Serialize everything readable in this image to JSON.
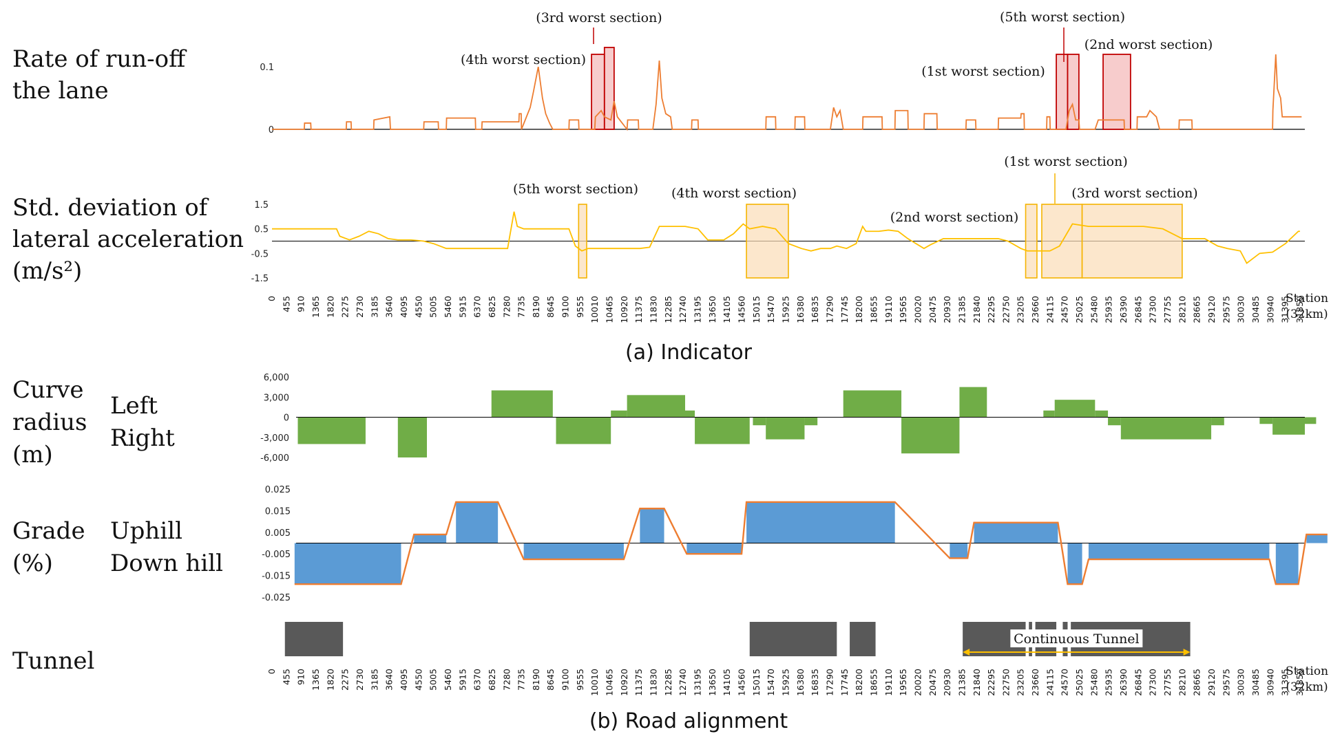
{
  "colors": {
    "runoff": "#ED7D31",
    "runoff_box": "#C00000",
    "lateral": "#FFC000",
    "lateral_box": "#F5B400",
    "curve": "#70AD47",
    "grade_bar": "#5B9BD5",
    "grade_line": "#ED7D31",
    "tunnel": "#595959",
    "tunnel_arrow": "#FFC000"
  },
  "x_ticks": [
    "0",
    "455",
    "910",
    "1365",
    "1820",
    "2275",
    "2730",
    "3185",
    "3640",
    "4095",
    "4550",
    "5005",
    "5460",
    "5915",
    "6370",
    "6825",
    "7280",
    "7735",
    "8190",
    "8645",
    "9100",
    "9555",
    "10010",
    "10465",
    "10920",
    "11375",
    "11830",
    "12285",
    "12740",
    "13195",
    "13650",
    "14105",
    "14560",
    "15015",
    "15470",
    "15925",
    "16380",
    "16835",
    "17290",
    "17745",
    "18200",
    "18655",
    "19110",
    "19565",
    "20020",
    "20475",
    "20930",
    "21385",
    "21840",
    "22295",
    "22750",
    "23205",
    "23660",
    "24115",
    "24570",
    "25025",
    "25480",
    "25935",
    "26390",
    "26845",
    "27300",
    "27755",
    "28210",
    "28665",
    "29120",
    "29575",
    "30030",
    "30485",
    "30940",
    "31395",
    "31850"
  ],
  "station_label_line1": "Station",
  "station_label_line2": "(32km)",
  "caption_a": "(a) Indicator",
  "caption_b": "(b) Road alignment",
  "chart_data": [
    {
      "id": "runoff",
      "type": "line",
      "label_lines": [
        "Rate of run-off",
        "the lane"
      ],
      "yticks": [
        "0.1",
        "0"
      ],
      "ylim": [
        0,
        0.12
      ],
      "x_range": [
        0,
        32000
      ],
      "series": [
        {
          "x": [
            0,
            1000,
            1010,
            1200,
            1210,
            2300,
            2310,
            2450,
            2460,
            3150,
            3160,
            3650,
            3670,
            4700,
            4710,
            5150,
            5160,
            5400,
            5410,
            6300,
            6310,
            6500,
            6510,
            7650,
            7660,
            7720,
            7730,
            8000,
            8100,
            8250,
            8380,
            8480,
            8600,
            8700,
            9200,
            9210,
            9500,
            9510,
            10000,
            10020,
            10200,
            10300,
            10500,
            10600,
            10700,
            11000,
            11020,
            11350,
            11360,
            11800,
            11900,
            12000,
            12080,
            12200,
            12350,
            12400,
            13000,
            13010,
            13200,
            13210,
            15300,
            15310,
            15600,
            15610,
            16200,
            16210,
            16500,
            16510,
            17300,
            17400,
            17500,
            17600,
            17700,
            18300,
            18310,
            18900,
            18910,
            19300,
            19310,
            19700,
            19710,
            20200,
            20210,
            20600,
            20610,
            21500,
            21510,
            21800,
            21810,
            22500,
            22510,
            23200,
            23210,
            23300,
            23310,
            24000,
            24010,
            24100,
            24110,
            24600,
            24700,
            24800,
            24900,
            25000,
            25020,
            25500,
            25600,
            26400,
            26410,
            26800,
            26810,
            27100,
            27200,
            27400,
            27500,
            28100,
            28110,
            28500,
            28510,
            31000,
            31010,
            31100,
            31150,
            31250,
            31300,
            31400,
            31410,
            31900
          ],
          "y": [
            0,
            0,
            0.01,
            0.01,
            0,
            0,
            0.012,
            0.012,
            0,
            0,
            0.015,
            0.02,
            0,
            0,
            0.012,
            0.012,
            0,
            0,
            0.018,
            0.018,
            0,
            0,
            0.012,
            0.012,
            0.025,
            0.025,
            0,
            0.035,
            0.06,
            0.1,
            0.05,
            0.025,
            0.01,
            0,
            0,
            0.015,
            0.015,
            0,
            0,
            0.02,
            0.03,
            0.02,
            0.015,
            0.045,
            0.02,
            0,
            0.015,
            0.015,
            0,
            0,
            0.04,
            0.11,
            0.05,
            0.025,
            0.02,
            0,
            0,
            0.015,
            0.015,
            0,
            0,
            0.02,
            0.02,
            0,
            0,
            0.02,
            0.02,
            0,
            0,
            0.035,
            0.02,
            0.03,
            0,
            0,
            0.02,
            0.02,
            0,
            0,
            0.03,
            0.03,
            0,
            0,
            0.025,
            0.025,
            0,
            0,
            0.015,
            0.015,
            0,
            0,
            0.018,
            0.018,
            0.025,
            0.025,
            0,
            0,
            0.02,
            0.02,
            0,
            0,
            0.03,
            0.04,
            0.015,
            0.015,
            0,
            0,
            0.015,
            0.015,
            0,
            0,
            0.02,
            0.02,
            0.03,
            0.02,
            0,
            0,
            0.015,
            0.015,
            0,
            0,
            0.03,
            0.12,
            0.065,
            0.05,
            0.02,
            0.02,
            0.02,
            0.02
          ]
        }
      ],
      "highlights": [
        {
          "label": "(4th worst section)",
          "x0": 9900,
          "x1": 10300
        },
        {
          "label": "(3rd worst section)",
          "x0": 10300,
          "x1": 10600
        },
        {
          "label": "(1st worst section)",
          "x0": 24300,
          "x1": 24650
        },
        {
          "label": "(5th worst section)",
          "x0": 24650,
          "x1": 25000
        },
        {
          "label": "(2nd worst section)",
          "x0": 25750,
          "x1": 26600
        }
      ]
    },
    {
      "id": "lateral",
      "type": "line",
      "label_lines": [
        "Std. deviation of",
        "lateral acceleration",
        "(m/s²)"
      ],
      "yticks": [
        "1.5",
        "0.5",
        "-0.5",
        "-1.5"
      ],
      "ylim": [
        -1.5,
        1.5
      ],
      "x_range": [
        0,
        32000
      ],
      "series": [
        {
          "x": [
            0,
            2000,
            2100,
            2400,
            2700,
            3000,
            3300,
            3600,
            3900,
            4300,
            4700,
            5000,
            5400,
            5800,
            6200,
            6900,
            7300,
            7500,
            7600,
            7800,
            8200,
            8600,
            9200,
            9400,
            9600,
            9800,
            10000,
            10500,
            11000,
            11400,
            11700,
            12000,
            12300,
            12800,
            13200,
            13500,
            14000,
            14300,
            14600,
            14800,
            15200,
            15600,
            16000,
            16400,
            16700,
            17000,
            17300,
            17500,
            17800,
            18100,
            18300,
            18400,
            18800,
            19100,
            19400,
            19700,
            20200,
            20400,
            20800,
            21300,
            21800,
            22500,
            22800,
            23200,
            23400,
            23800,
            24100,
            24400,
            24800,
            25300,
            25800,
            26400,
            27000,
            27600,
            28200,
            28500,
            28900,
            29300,
            29600,
            30000,
            30200,
            30600,
            31000,
            31400,
            31800,
            31850
          ],
          "y": [
            0.5,
            0.5,
            0.2,
            0.05,
            0.2,
            0.4,
            0.3,
            0.1,
            0.05,
            0.05,
            0.0,
            -0.1,
            -0.3,
            -0.3,
            -0.3,
            -0.3,
            -0.3,
            1.2,
            0.6,
            0.5,
            0.5,
            0.5,
            0.5,
            -0.2,
            -0.4,
            -0.3,
            -0.3,
            -0.3,
            -0.3,
            -0.3,
            -0.25,
            0.6,
            0.6,
            0.6,
            0.5,
            0.05,
            0.05,
            0.3,
            0.7,
            0.5,
            0.6,
            0.5,
            -0.1,
            -0.3,
            -0.4,
            -0.3,
            -0.3,
            -0.2,
            -0.3,
            -0.1,
            0.6,
            0.4,
            0.4,
            0.45,
            0.4,
            0.1,
            -0.3,
            -0.15,
            0.1,
            0.1,
            0.1,
            0.1,
            0.0,
            -0.3,
            -0.4,
            -0.4,
            -0.4,
            -0.2,
            0.7,
            0.6,
            0.6,
            0.6,
            0.6,
            0.5,
            0.1,
            0.1,
            0.1,
            -0.2,
            -0.3,
            -0.4,
            -0.9,
            -0.5,
            -0.45,
            -0.1,
            0.4,
            0.4
          ]
        }
      ],
      "highlights": [
        {
          "label": "(5th worst section)",
          "x0": 9500,
          "x1": 9750
        },
        {
          "label": "(4th worst section)",
          "x0": 14700,
          "x1": 16000
        },
        {
          "label": "(2nd worst section)",
          "x0": 23350,
          "x1": 23700
        },
        {
          "label": "(1st worst section)",
          "x0": 23850,
          "x1": 25100
        },
        {
          "label": "(3rd worst section)",
          "x0": 25100,
          "x1": 28200
        }
      ]
    },
    {
      "id": "curve",
      "type": "bar",
      "label_lines": [
        "Curve",
        "radius",
        "(m)"
      ],
      "side_labels": [
        "Left",
        "Right"
      ],
      "yticks": [
        "6,000",
        "3,000",
        "0",
        "-3,000",
        "-6,000"
      ],
      "ylim": [
        -6000,
        6000
      ],
      "x_range": [
        0,
        32000
      ],
      "segments": [
        {
          "x0": 800,
          "x1": 2900,
          "v": -4000
        },
        {
          "x0": 3900,
          "x1": 4800,
          "v": -6000
        },
        {
          "x0": 6800,
          "x1": 8700,
          "v": 4000
        },
        {
          "x0": 8800,
          "x1": 10500,
          "v": -4000
        },
        {
          "x0": 10500,
          "x1": 11000,
          "v": 1000
        },
        {
          "x0": 11000,
          "x1": 12800,
          "v": 3300
        },
        {
          "x0": 12800,
          "x1": 13100,
          "v": 1000
        },
        {
          "x0": 13100,
          "x1": 14800,
          "v": -4000
        },
        {
          "x0": 14900,
          "x1": 15300,
          "v": -1200
        },
        {
          "x0": 15300,
          "x1": 16500,
          "v": -3300
        },
        {
          "x0": 16500,
          "x1": 16900,
          "v": -1200
        },
        {
          "x0": 17700,
          "x1": 19500,
          "v": 4000
        },
        {
          "x0": 19500,
          "x1": 21300,
          "v": -5400
        },
        {
          "x0": 21300,
          "x1": 22150,
          "v": 4500
        },
        {
          "x0": 23900,
          "x1": 24250,
          "v": 1000
        },
        {
          "x0": 24250,
          "x1": 25500,
          "v": 2600
        },
        {
          "x0": 25500,
          "x1": 25900,
          "v": 1000
        },
        {
          "x0": 25900,
          "x1": 26300,
          "v": -1200
        },
        {
          "x0": 26300,
          "x1": 29100,
          "v": -3300
        },
        {
          "x0": 29100,
          "x1": 29500,
          "v": -1200
        },
        {
          "x0": 30600,
          "x1": 31000,
          "v": -1000
        },
        {
          "x0": 31000,
          "x1": 32000,
          "v": -2600
        },
        {
          "x0": 32000,
          "x1": 32350,
          "v": -1000
        }
      ]
    },
    {
      "id": "grade",
      "type": "bar",
      "label_lines": [
        "Grade",
        "(%)"
      ],
      "side_labels": [
        "Uphill",
        "Down hill"
      ],
      "yticks": [
        "0.025",
        "0.015",
        "0.005",
        "-0.005",
        "-0.015",
        "-0.025"
      ],
      "ylim": [
        -0.025,
        0.025
      ],
      "x_range": [
        0,
        32000
      ],
      "segments": [
        {
          "x0": 700,
          "x1": 4000,
          "v": -0.019
        },
        {
          "x0": 4400,
          "x1": 5400,
          "v": 0.004
        },
        {
          "x0": 5700,
          "x1": 7000,
          "v": 0.019
        },
        {
          "x0": 7800,
          "x1": 10900,
          "v": -0.0075
        },
        {
          "x0": 11400,
          "x1": 12150,
          "v": 0.016
        },
        {
          "x0": 12850,
          "x1": 14550,
          "v": -0.005
        },
        {
          "x0": 14700,
          "x1": 19300,
          "v": 0.019
        },
        {
          "x0": 21000,
          "x1": 21550,
          "v": -0.007
        },
        {
          "x0": 21750,
          "x1": 24350,
          "v": 0.0095
        },
        {
          "x0": 24650,
          "x1": 25100,
          "v": -0.019
        },
        {
          "x0": 25300,
          "x1": 30900,
          "v": -0.0075
        },
        {
          "x0": 31100,
          "x1": 31800,
          "v": -0.019
        },
        {
          "x0": 32050,
          "x1": 32700,
          "v": 0.004
        }
      ],
      "line": {
        "x": [
          700,
          4000,
          4400,
          5400,
          5700,
          7000,
          7800,
          10900,
          11400,
          12150,
          12850,
          14550,
          14700,
          19300,
          21000,
          21550,
          21750,
          24350,
          24650,
          25100,
          25300,
          30900,
          31100,
          31800,
          32050,
          32700
        ],
        "y": [
          -0.019,
          -0.019,
          0.004,
          0.004,
          0.019,
          0.019,
          -0.0075,
          -0.0075,
          0.016,
          0.016,
          -0.005,
          -0.005,
          0.019,
          0.019,
          -0.007,
          -0.007,
          0.0095,
          0.0095,
          -0.019,
          -0.019,
          -0.0075,
          -0.0075,
          -0.019,
          -0.019,
          0.004,
          0.004
        ]
      }
    },
    {
      "id": "tunnel",
      "type": "bar",
      "label_lines": [
        "Tunnel"
      ],
      "x_range": [
        0,
        32000
      ],
      "segments": [
        {
          "x0": 400,
          "x1": 2200
        },
        {
          "x0": 14800,
          "x1": 17500
        },
        {
          "x0": 17900,
          "x1": 18700
        },
        {
          "x0": 21400,
          "x1": 23350
        },
        {
          "x0": 23450,
          "x1": 23550
        },
        {
          "x0": 23650,
          "x1": 24300
        },
        {
          "x0": 24500,
          "x1": 24650
        },
        {
          "x0": 24750,
          "x1": 28450
        }
      ],
      "annotation": {
        "label": "Continuous Tunnel",
        "x0": 21400,
        "x1": 28450
      }
    }
  ]
}
